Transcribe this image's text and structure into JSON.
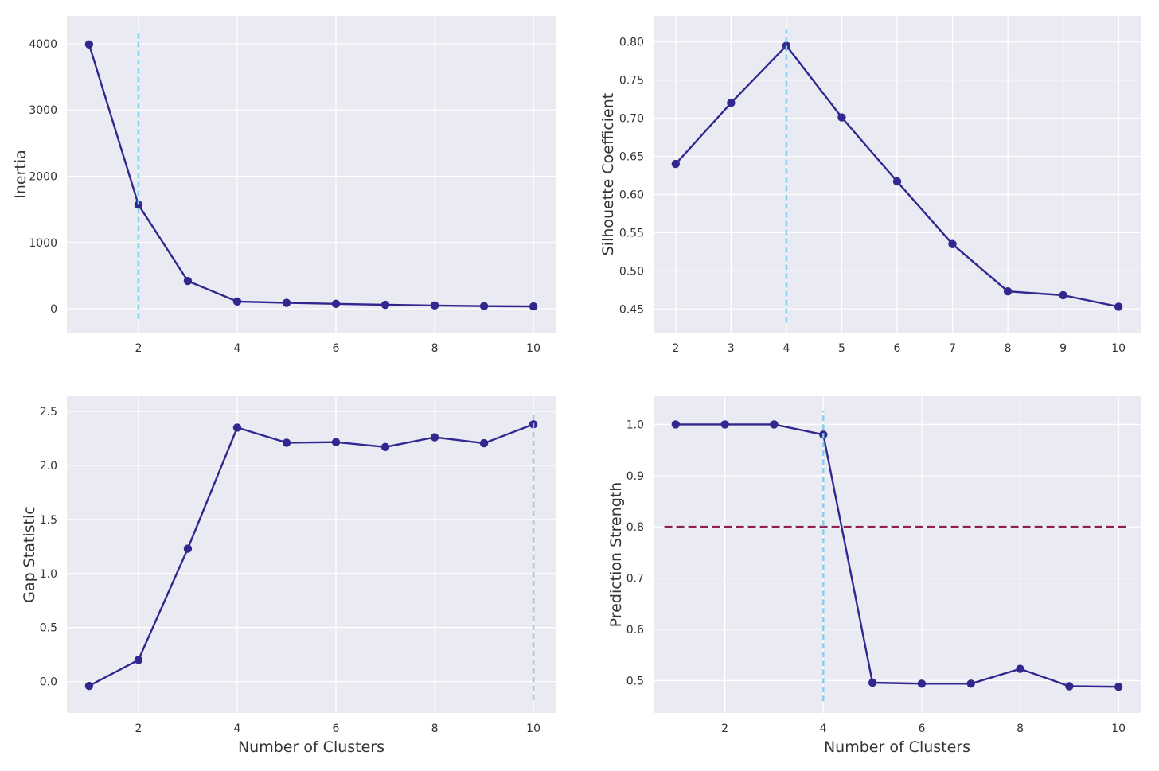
{
  "colors": {
    "background": "#eaeaf2",
    "grid": "#ffffff",
    "series": "#33268f",
    "optimal_line": "#87ceeb",
    "threshold_line": "#8b2252"
  },
  "chart_data": [
    {
      "type": "line",
      "xlabel": "",
      "ylabel": "Inertia",
      "x": [
        1,
        2,
        3,
        4,
        5,
        6,
        7,
        8,
        9,
        10
      ],
      "series": [
        {
          "values": [
            3990,
            1570,
            420,
            110,
            90,
            75,
            60,
            50,
            40,
            35
          ]
        }
      ],
      "xlim": [
        0.55,
        10.45
      ],
      "ylim": [
        -360,
        4420
      ],
      "xticks": [
        2,
        4,
        6,
        8,
        10
      ],
      "yticks": [
        0,
        1000,
        2000,
        3000,
        4000
      ],
      "ytick_format": 0,
      "vline": 2,
      "vline_range": [
        -150,
        4220
      ],
      "grid": true
    },
    {
      "type": "line",
      "xlabel": "",
      "ylabel": "Silhouette Coefficient",
      "x": [
        2,
        3,
        4,
        5,
        6,
        7,
        8,
        9,
        10
      ],
      "series": [
        {
          "values": [
            0.64,
            0.72,
            0.795,
            0.701,
            0.617,
            0.535,
            0.473,
            0.468,
            0.453
          ]
        }
      ],
      "xlim": [
        1.6,
        10.4
      ],
      "ylim": [
        0.419,
        0.834
      ],
      "xticks": [
        2,
        3,
        4,
        5,
        6,
        7,
        8,
        9,
        10
      ],
      "yticks": [
        0.45,
        0.5,
        0.55,
        0.6,
        0.65,
        0.7,
        0.75,
        0.8
      ],
      "ytick_format": 2,
      "vline": 4,
      "vline_range": [
        0.432,
        0.816
      ],
      "grid": true
    },
    {
      "type": "line",
      "xlabel": "Number of Clusters",
      "ylabel": "Gap Statistic",
      "x": [
        1,
        2,
        3,
        4,
        5,
        6,
        7,
        8,
        9,
        10
      ],
      "series": [
        {
          "values": [
            -0.04,
            0.2,
            1.23,
            2.35,
            2.21,
            2.215,
            2.17,
            2.26,
            2.205,
            2.38
          ]
        }
      ],
      "xlim": [
        0.55,
        10.45
      ],
      "ylim": [
        -0.29,
        2.64
      ],
      "xticks": [
        2,
        4,
        6,
        8,
        10
      ],
      "yticks": [
        0,
        0.5,
        1,
        1.5,
        2,
        2.5
      ],
      "ytick_format": 1,
      "vline": 10,
      "vline_range": [
        -0.17,
        2.51
      ],
      "grid": true
    },
    {
      "type": "line",
      "xlabel": "Number of Clusters",
      "ylabel": "Prediction Strength",
      "x": [
        1,
        2,
        3,
        4,
        5,
        6,
        7,
        8,
        9,
        10
      ],
      "series": [
        {
          "values": [
            1.0,
            1.0,
            1.0,
            0.98,
            0.496,
            0.494,
            0.494,
            0.523,
            0.489,
            0.488
          ]
        }
      ],
      "xlim": [
        0.55,
        10.45
      ],
      "ylim": [
        0.437,
        1.055
      ],
      "xticks": [
        2,
        4,
        6,
        8,
        10
      ],
      "yticks": [
        0.5,
        0.6,
        0.7,
        0.8,
        0.9,
        1.0
      ],
      "ytick_format": 1,
      "vline": 4,
      "vline_range": [
        0.46,
        1.027
      ],
      "hline": 0.8,
      "hline_range": [
        0.77,
        10.2
      ],
      "grid": true
    }
  ]
}
